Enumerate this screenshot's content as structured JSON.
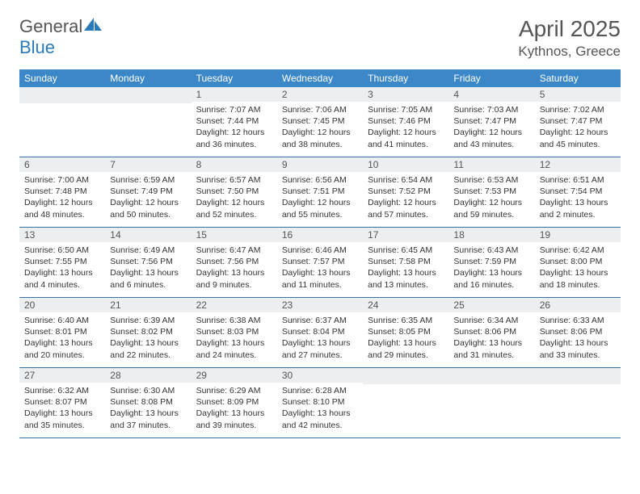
{
  "brand": {
    "part1": "General",
    "part2": "Blue"
  },
  "title": "April 2025",
  "location": "Kythnos, Greece",
  "colors": {
    "header_bg": "#3b87c8",
    "header_text": "#ffffff",
    "daynum_bg": "#edeef0",
    "row_border": "#3b6fa0",
    "brand_blue": "#2a7aba",
    "text": "#333333"
  },
  "weekdays": [
    "Sunday",
    "Monday",
    "Tuesday",
    "Wednesday",
    "Thursday",
    "Friday",
    "Saturday"
  ],
  "calendar": {
    "first_weekday_index": 2,
    "num_days": 30,
    "days": [
      {
        "n": 1,
        "sunrise": "7:07 AM",
        "sunset": "7:44 PM",
        "daylight": "12 hours and 36 minutes."
      },
      {
        "n": 2,
        "sunrise": "7:06 AM",
        "sunset": "7:45 PM",
        "daylight": "12 hours and 38 minutes."
      },
      {
        "n": 3,
        "sunrise": "7:05 AM",
        "sunset": "7:46 PM",
        "daylight": "12 hours and 41 minutes."
      },
      {
        "n": 4,
        "sunrise": "7:03 AM",
        "sunset": "7:47 PM",
        "daylight": "12 hours and 43 minutes."
      },
      {
        "n": 5,
        "sunrise": "7:02 AM",
        "sunset": "7:47 PM",
        "daylight": "12 hours and 45 minutes."
      },
      {
        "n": 6,
        "sunrise": "7:00 AM",
        "sunset": "7:48 PM",
        "daylight": "12 hours and 48 minutes."
      },
      {
        "n": 7,
        "sunrise": "6:59 AM",
        "sunset": "7:49 PM",
        "daylight": "12 hours and 50 minutes."
      },
      {
        "n": 8,
        "sunrise": "6:57 AM",
        "sunset": "7:50 PM",
        "daylight": "12 hours and 52 minutes."
      },
      {
        "n": 9,
        "sunrise": "6:56 AM",
        "sunset": "7:51 PM",
        "daylight": "12 hours and 55 minutes."
      },
      {
        "n": 10,
        "sunrise": "6:54 AM",
        "sunset": "7:52 PM",
        "daylight": "12 hours and 57 minutes."
      },
      {
        "n": 11,
        "sunrise": "6:53 AM",
        "sunset": "7:53 PM",
        "daylight": "12 hours and 59 minutes."
      },
      {
        "n": 12,
        "sunrise": "6:51 AM",
        "sunset": "7:54 PM",
        "daylight": "13 hours and 2 minutes."
      },
      {
        "n": 13,
        "sunrise": "6:50 AM",
        "sunset": "7:55 PM",
        "daylight": "13 hours and 4 minutes."
      },
      {
        "n": 14,
        "sunrise": "6:49 AM",
        "sunset": "7:56 PM",
        "daylight": "13 hours and 6 minutes."
      },
      {
        "n": 15,
        "sunrise": "6:47 AM",
        "sunset": "7:56 PM",
        "daylight": "13 hours and 9 minutes."
      },
      {
        "n": 16,
        "sunrise": "6:46 AM",
        "sunset": "7:57 PM",
        "daylight": "13 hours and 11 minutes."
      },
      {
        "n": 17,
        "sunrise": "6:45 AM",
        "sunset": "7:58 PM",
        "daylight": "13 hours and 13 minutes."
      },
      {
        "n": 18,
        "sunrise": "6:43 AM",
        "sunset": "7:59 PM",
        "daylight": "13 hours and 16 minutes."
      },
      {
        "n": 19,
        "sunrise": "6:42 AM",
        "sunset": "8:00 PM",
        "daylight": "13 hours and 18 minutes."
      },
      {
        "n": 20,
        "sunrise": "6:40 AM",
        "sunset": "8:01 PM",
        "daylight": "13 hours and 20 minutes."
      },
      {
        "n": 21,
        "sunrise": "6:39 AM",
        "sunset": "8:02 PM",
        "daylight": "13 hours and 22 minutes."
      },
      {
        "n": 22,
        "sunrise": "6:38 AM",
        "sunset": "8:03 PM",
        "daylight": "13 hours and 24 minutes."
      },
      {
        "n": 23,
        "sunrise": "6:37 AM",
        "sunset": "8:04 PM",
        "daylight": "13 hours and 27 minutes."
      },
      {
        "n": 24,
        "sunrise": "6:35 AM",
        "sunset": "8:05 PM",
        "daylight": "13 hours and 29 minutes."
      },
      {
        "n": 25,
        "sunrise": "6:34 AM",
        "sunset": "8:06 PM",
        "daylight": "13 hours and 31 minutes."
      },
      {
        "n": 26,
        "sunrise": "6:33 AM",
        "sunset": "8:06 PM",
        "daylight": "13 hours and 33 minutes."
      },
      {
        "n": 27,
        "sunrise": "6:32 AM",
        "sunset": "8:07 PM",
        "daylight": "13 hours and 35 minutes."
      },
      {
        "n": 28,
        "sunrise": "6:30 AM",
        "sunset": "8:08 PM",
        "daylight": "13 hours and 37 minutes."
      },
      {
        "n": 29,
        "sunrise": "6:29 AM",
        "sunset": "8:09 PM",
        "daylight": "13 hours and 39 minutes."
      },
      {
        "n": 30,
        "sunrise": "6:28 AM",
        "sunset": "8:10 PM",
        "daylight": "13 hours and 42 minutes."
      }
    ]
  },
  "labels": {
    "sunrise_prefix": "Sunrise: ",
    "sunset_prefix": "Sunset: ",
    "daylight_prefix": "Daylight: "
  }
}
